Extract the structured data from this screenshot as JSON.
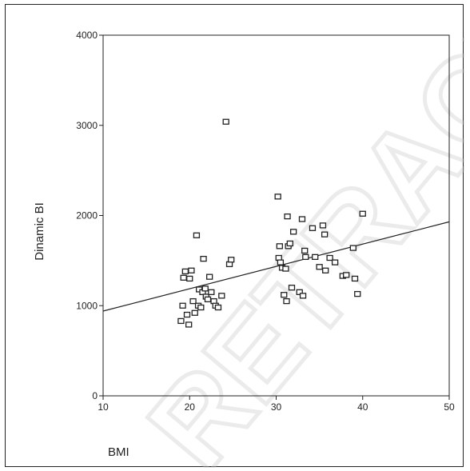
{
  "chart_data": {
    "type": "scatter",
    "xlabel": "BMI",
    "ylabel": "Dinamic BI",
    "xlim": [
      10,
      50
    ],
    "ylim": [
      0,
      4000
    ],
    "x_ticks": [
      10,
      20,
      30,
      40,
      50
    ],
    "y_ticks": [
      0,
      1000,
      2000,
      3000,
      4000
    ],
    "grid": false,
    "marker": "square-open",
    "points": [
      [
        19,
        830
      ],
      [
        19.2,
        1000
      ],
      [
        19.3,
        1310
      ],
      [
        19.5,
        1380
      ],
      [
        19.7,
        900
      ],
      [
        19.9,
        790
      ],
      [
        20,
        1300
      ],
      [
        20.2,
        1390
      ],
      [
        20.4,
        1050
      ],
      [
        20.6,
        920
      ],
      [
        20.8,
        1780
      ],
      [
        21,
        1000
      ],
      [
        21.1,
        1180
      ],
      [
        21.3,
        980
      ],
      [
        21.5,
        1150
      ],
      [
        21.6,
        1520
      ],
      [
        21.8,
        1190
      ],
      [
        21.9,
        1100
      ],
      [
        22.1,
        1070
      ],
      [
        22.3,
        1320
      ],
      [
        22.5,
        1150
      ],
      [
        22.8,
        1050
      ],
      [
        23,
        1000
      ],
      [
        23.3,
        980
      ],
      [
        23.7,
        1110
      ],
      [
        24.2,
        3040
      ],
      [
        24.6,
        1460
      ],
      [
        24.8,
        1510
      ],
      [
        30.2,
        2210
      ],
      [
        30.3,
        1530
      ],
      [
        30.4,
        1660
      ],
      [
        30.5,
        1480
      ],
      [
        30.7,
        1420
      ],
      [
        30.9,
        1120
      ],
      [
        31.1,
        1410
      ],
      [
        31.2,
        1050
      ],
      [
        31.3,
        1990
      ],
      [
        31.4,
        1660
      ],
      [
        31.6,
        1690
      ],
      [
        31.8,
        1200
      ],
      [
        32,
        1820
      ],
      [
        32.7,
        1150
      ],
      [
        33,
        1960
      ],
      [
        33.1,
        1110
      ],
      [
        33.3,
        1610
      ],
      [
        33.4,
        1540
      ],
      [
        34.2,
        1860
      ],
      [
        34.5,
        1540
      ],
      [
        35,
        1430
      ],
      [
        35.4,
        1890
      ],
      [
        35.6,
        1790
      ],
      [
        35.7,
        1390
      ],
      [
        36.2,
        1530
      ],
      [
        36.8,
        1480
      ],
      [
        37.7,
        1330
      ],
      [
        38.1,
        1340
      ],
      [
        38.9,
        1640
      ],
      [
        39.1,
        1300
      ],
      [
        39.4,
        1130
      ],
      [
        40,
        2020
      ]
    ],
    "regression_line": {
      "x": [
        10,
        50
      ],
      "y": [
        940,
        1930
      ]
    }
  }
}
